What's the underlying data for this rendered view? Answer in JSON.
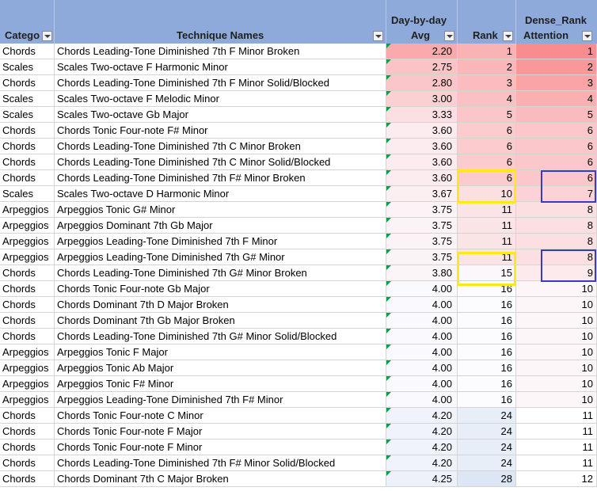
{
  "headers": {
    "category": "Catego",
    "technique": "Technique Names",
    "avg_line1": "Day-by-day",
    "avg_line2": "Avg",
    "rank": "Rank",
    "dense_line1": "Dense_Rank",
    "dense_line2": "Attention"
  },
  "rows": [
    {
      "cat": "Chords",
      "tech": "Chords Leading-Tone Diminished 7th F Minor Broken",
      "avg": "2.20",
      "rank": "1",
      "dense": "1"
    },
    {
      "cat": "Scales",
      "tech": "Scales Two-octave F Harmonic Minor",
      "avg": "2.75",
      "rank": "2",
      "dense": "2"
    },
    {
      "cat": "Chords",
      "tech": "Chords Leading-Tone Diminished 7th F Minor Solid/Blocked",
      "avg": "2.80",
      "rank": "3",
      "dense": "3"
    },
    {
      "cat": "Scales",
      "tech": "Scales Two-octave F Melodic Minor",
      "avg": "3.00",
      "rank": "4",
      "dense": "4"
    },
    {
      "cat": "Scales",
      "tech": "Scales Two-octave Gb Major",
      "avg": "3.33",
      "rank": "5",
      "dense": "5"
    },
    {
      "cat": "Chords",
      "tech": "Chords Tonic Four-note  F# Minor",
      "avg": "3.60",
      "rank": "6",
      "dense": "6"
    },
    {
      "cat": "Chords",
      "tech": "Chords Leading-Tone Diminished 7th C Minor Broken",
      "avg": "3.60",
      "rank": "6",
      "dense": "6"
    },
    {
      "cat": "Chords",
      "tech": "Chords Leading-Tone Diminished 7th C Minor Solid/Blocked",
      "avg": "3.60",
      "rank": "6",
      "dense": "6"
    },
    {
      "cat": "Chords",
      "tech": "Chords Leading-Tone Diminished 7th F# Minor Broken",
      "avg": "3.60",
      "rank": "6",
      "dense": "6"
    },
    {
      "cat": "Scales",
      "tech": "Scales Two-octave D Harmonic Minor",
      "avg": "3.67",
      "rank": "10",
      "dense": "7"
    },
    {
      "cat": "Arpeggios",
      "tech": "Arpeggios Tonic G# Minor",
      "avg": "3.75",
      "rank": "11",
      "dense": "8"
    },
    {
      "cat": "Arpeggios",
      "tech": "Arpeggios Dominant 7th Gb Major",
      "avg": "3.75",
      "rank": "11",
      "dense": "8"
    },
    {
      "cat": "Arpeggios",
      "tech": "Arpeggios Leading-Tone Diminished 7th F Minor",
      "avg": "3.75",
      "rank": "11",
      "dense": "8"
    },
    {
      "cat": "Arpeggios",
      "tech": "Arpeggios Leading-Tone Diminished 7th G# Minor",
      "avg": "3.75",
      "rank": "11",
      "dense": "8"
    },
    {
      "cat": "Chords",
      "tech": "Chords Leading-Tone Diminished 7th G# Minor Broken",
      "avg": "3.80",
      "rank": "15",
      "dense": "9"
    },
    {
      "cat": "Chords",
      "tech": "Chords Tonic Four-note  Gb Major",
      "avg": "4.00",
      "rank": "16",
      "dense": "10"
    },
    {
      "cat": "Chords",
      "tech": "Chords Dominant 7th D Major Broken",
      "avg": "4.00",
      "rank": "16",
      "dense": "10"
    },
    {
      "cat": "Chords",
      "tech": "Chords Dominant 7th Gb Major Broken",
      "avg": "4.00",
      "rank": "16",
      "dense": "10"
    },
    {
      "cat": "Chords",
      "tech": "Chords Leading-Tone Diminished 7th G# Minor Solid/Blocked",
      "avg": "4.00",
      "rank": "16",
      "dense": "10"
    },
    {
      "cat": "Arpeggios",
      "tech": "Arpeggios Tonic F Major",
      "avg": "4.00",
      "rank": "16",
      "dense": "10"
    },
    {
      "cat": "Arpeggios",
      "tech": "Arpeggios Tonic Ab Major",
      "avg": "4.00",
      "rank": "16",
      "dense": "10"
    },
    {
      "cat": "Arpeggios",
      "tech": "Arpeggios Tonic F# Minor",
      "avg": "4.00",
      "rank": "16",
      "dense": "10"
    },
    {
      "cat": "Arpeggios",
      "tech": "Arpeggios Leading-Tone Diminished 7th F# Minor",
      "avg": "4.00",
      "rank": "16",
      "dense": "10"
    },
    {
      "cat": "Chords",
      "tech": "Chords Tonic Four-note  C Minor",
      "avg": "4.20",
      "rank": "24",
      "dense": "11"
    },
    {
      "cat": "Chords",
      "tech": "Chords Tonic Four-note  F Major",
      "avg": "4.20",
      "rank": "24",
      "dense": "11"
    },
    {
      "cat": "Chords",
      "tech": "Chords Tonic Four-note  F Minor",
      "avg": "4.20",
      "rank": "24",
      "dense": "11"
    },
    {
      "cat": "Chords",
      "tech": "Chords Leading-Tone Diminished 7th F# Minor Solid/Blocked",
      "avg": "4.20",
      "rank": "24",
      "dense": "11"
    },
    {
      "cat": "Chords",
      "tech": "Chords Dominant 7th C Major Broken",
      "avg": "4.25",
      "rank": "28",
      "dense": "12"
    }
  ],
  "colors": {
    "header_bg": "#8eaadb",
    "heat_low": "#f8696b",
    "heat_mid": "#fcfcff",
    "heat_high": "#c9d8ee",
    "highlight_yellow": "#ffe81a",
    "highlight_blue": "#3b3bbf",
    "error_flag": "#00a14b"
  },
  "icons": {
    "filter": "filter-dropdown-icon",
    "error_flag": "number-stored-as-text-indicator"
  }
}
